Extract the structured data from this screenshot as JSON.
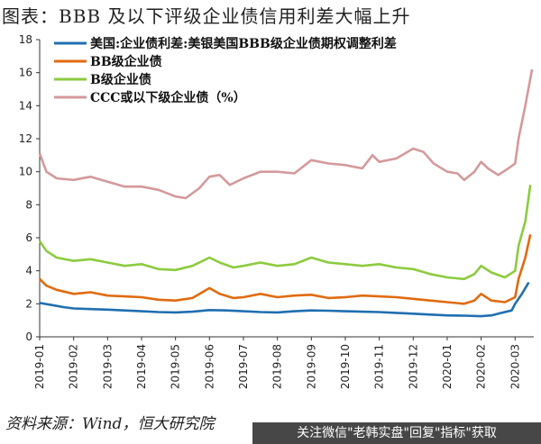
{
  "title": "图表：BBB 及以下评级企业债信用利差大幅上升",
  "source": "资料来源：Wind，恒大研究院",
  "watermark": "关注微信\"老韩实盘\"回复\"指标\"获取",
  "chart_data": {
    "type": "line",
    "ylim": [
      0,
      18
    ],
    "yticks": [
      0,
      2,
      4,
      6,
      8,
      10,
      12,
      14,
      16,
      18
    ],
    "xticks": [
      "2019-01",
      "2019-02",
      "2019-03",
      "2019-04",
      "2019-05",
      "2019-06",
      "2019-07",
      "2019-08",
      "2019-09",
      "2019-10",
      "2019-11",
      "2019-12",
      "2020-01",
      "2020-02",
      "2020-03"
    ],
    "legend_position": "top-left",
    "series": [
      {
        "name": "美国:企业债利差:美银美国BBB级企业债期权调整利差",
        "color": "#1f6fb0",
        "points": [
          [
            0,
            2.05
          ],
          [
            0.3,
            1.95
          ],
          [
            0.7,
            1.8
          ],
          [
            1.0,
            1.72
          ],
          [
            1.5,
            1.68
          ],
          [
            2.0,
            1.65
          ],
          [
            2.5,
            1.6
          ],
          [
            3.0,
            1.55
          ],
          [
            3.5,
            1.5
          ],
          [
            4.0,
            1.48
          ],
          [
            4.5,
            1.52
          ],
          [
            5.0,
            1.62
          ],
          [
            5.5,
            1.6
          ],
          [
            6.0,
            1.55
          ],
          [
            6.5,
            1.5
          ],
          [
            7.0,
            1.48
          ],
          [
            7.5,
            1.55
          ],
          [
            8.0,
            1.6
          ],
          [
            8.5,
            1.58
          ],
          [
            9.0,
            1.55
          ],
          [
            9.5,
            1.52
          ],
          [
            10.0,
            1.5
          ],
          [
            10.5,
            1.45
          ],
          [
            11.0,
            1.4
          ],
          [
            11.5,
            1.35
          ],
          [
            12.0,
            1.3
          ],
          [
            12.5,
            1.28
          ],
          [
            13.0,
            1.25
          ],
          [
            13.3,
            1.3
          ],
          [
            13.6,
            1.45
          ],
          [
            13.9,
            1.6
          ],
          [
            14.0,
            2.0
          ],
          [
            14.2,
            2.6
          ],
          [
            14.4,
            3.3
          ]
        ]
      },
      {
        "name": "BB级企业债",
        "color": "#e06b10",
        "points": [
          [
            0,
            3.5
          ],
          [
            0.2,
            3.1
          ],
          [
            0.5,
            2.85
          ],
          [
            1.0,
            2.6
          ],
          [
            1.5,
            2.7
          ],
          [
            2.0,
            2.5
          ],
          [
            2.5,
            2.45
          ],
          [
            3.0,
            2.4
          ],
          [
            3.5,
            2.25
          ],
          [
            4.0,
            2.2
          ],
          [
            4.5,
            2.35
          ],
          [
            5.0,
            2.95
          ],
          [
            5.3,
            2.6
          ],
          [
            5.7,
            2.35
          ],
          [
            6.0,
            2.4
          ],
          [
            6.5,
            2.6
          ],
          [
            7.0,
            2.4
          ],
          [
            7.5,
            2.5
          ],
          [
            8.0,
            2.55
          ],
          [
            8.5,
            2.35
          ],
          [
            9.0,
            2.4
          ],
          [
            9.5,
            2.5
          ],
          [
            10.0,
            2.45
          ],
          [
            10.5,
            2.4
          ],
          [
            11.0,
            2.3
          ],
          [
            11.5,
            2.2
          ],
          [
            12.0,
            2.1
          ],
          [
            12.5,
            2.0
          ],
          [
            12.8,
            2.2
          ],
          [
            13.0,
            2.6
          ],
          [
            13.3,
            2.2
          ],
          [
            13.7,
            2.1
          ],
          [
            14.0,
            2.4
          ],
          [
            14.1,
            3.5
          ],
          [
            14.3,
            4.8
          ],
          [
            14.45,
            6.2
          ]
        ]
      },
      {
        "name": "B级企业债",
        "color": "#8ccb3e",
        "points": [
          [
            0,
            5.8
          ],
          [
            0.2,
            5.2
          ],
          [
            0.5,
            4.8
          ],
          [
            1.0,
            4.6
          ],
          [
            1.5,
            4.7
          ],
          [
            2.0,
            4.5
          ],
          [
            2.5,
            4.3
          ],
          [
            3.0,
            4.4
          ],
          [
            3.5,
            4.1
          ],
          [
            4.0,
            4.05
          ],
          [
            4.5,
            4.3
          ],
          [
            5.0,
            4.8
          ],
          [
            5.3,
            4.5
          ],
          [
            5.7,
            4.2
          ],
          [
            6.0,
            4.3
          ],
          [
            6.5,
            4.5
          ],
          [
            7.0,
            4.3
          ],
          [
            7.5,
            4.4
          ],
          [
            8.0,
            4.8
          ],
          [
            8.5,
            4.5
          ],
          [
            9.0,
            4.4
          ],
          [
            9.5,
            4.3
          ],
          [
            10.0,
            4.4
          ],
          [
            10.5,
            4.2
          ],
          [
            11.0,
            4.1
          ],
          [
            11.5,
            3.8
          ],
          [
            12.0,
            3.6
          ],
          [
            12.5,
            3.5
          ],
          [
            12.8,
            3.8
          ],
          [
            13.0,
            4.3
          ],
          [
            13.3,
            3.9
          ],
          [
            13.7,
            3.6
          ],
          [
            14.0,
            4.0
          ],
          [
            14.1,
            5.5
          ],
          [
            14.3,
            7.0
          ],
          [
            14.45,
            9.2
          ]
        ]
      },
      {
        "name": "CCC或以下级企业债（%）",
        "color": "#d4999b",
        "points": [
          [
            0,
            11.1
          ],
          [
            0.2,
            10.0
          ],
          [
            0.5,
            9.6
          ],
          [
            1.0,
            9.5
          ],
          [
            1.5,
            9.7
          ],
          [
            2.0,
            9.4
          ],
          [
            2.5,
            9.1
          ],
          [
            3.0,
            9.1
          ],
          [
            3.5,
            8.9
          ],
          [
            4.0,
            8.5
          ],
          [
            4.3,
            8.4
          ],
          [
            4.7,
            9.0
          ],
          [
            5.0,
            9.7
          ],
          [
            5.3,
            9.8
          ],
          [
            5.6,
            9.2
          ],
          [
            6.0,
            9.6
          ],
          [
            6.5,
            10.0
          ],
          [
            7.0,
            10.0
          ],
          [
            7.5,
            9.9
          ],
          [
            8.0,
            10.7
          ],
          [
            8.5,
            10.5
          ],
          [
            9.0,
            10.4
          ],
          [
            9.5,
            10.2
          ],
          [
            9.8,
            11.0
          ],
          [
            10.0,
            10.6
          ],
          [
            10.5,
            10.8
          ],
          [
            11.0,
            11.4
          ],
          [
            11.3,
            11.2
          ],
          [
            11.6,
            10.5
          ],
          [
            12.0,
            10.0
          ],
          [
            12.3,
            9.9
          ],
          [
            12.5,
            9.5
          ],
          [
            12.8,
            10.0
          ],
          [
            13.0,
            10.6
          ],
          [
            13.2,
            10.2
          ],
          [
            13.5,
            9.8
          ],
          [
            13.8,
            10.2
          ],
          [
            14.0,
            10.5
          ],
          [
            14.1,
            12.0
          ],
          [
            14.3,
            14.0
          ],
          [
            14.5,
            16.2
          ]
        ]
      }
    ]
  }
}
